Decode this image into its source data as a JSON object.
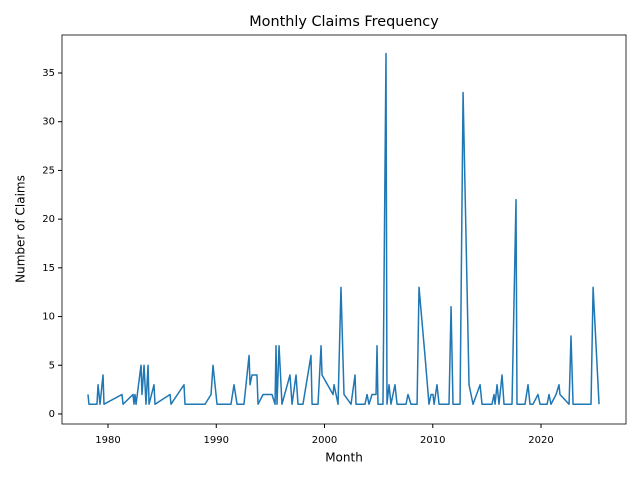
{
  "chart_data": {
    "type": "line",
    "title": "Monthly Claims Frequency",
    "x_label": "Month",
    "y_label": "Number of Claims",
    "color": "#1f77b4",
    "x": [
      1978.15,
      1978.24,
      1978.98,
      1979.08,
      1979.26,
      1979.54,
      1979.63,
      1981.29,
      1981.39,
      1982.31,
      1982.4,
      1982.49,
      1982.59,
      1983.05,
      1983.14,
      1983.33,
      1983.51,
      1983.7,
      1983.79,
      1984.25,
      1984.34,
      1985.73,
      1985.82,
      1987.02,
      1987.11,
      1988.96,
      1989.52,
      1989.7,
      1990.07,
      1991.36,
      1991.64,
      1991.92,
      1992.56,
      1993.03,
      1993.12,
      1993.3,
      1993.76,
      1993.86,
      1994.32,
      1995.15,
      1995.43,
      1995.52,
      1995.61,
      1995.8,
      1996.07,
      1996.81,
      1997.0,
      1997.37,
      1997.55,
      1998.01,
      1998.75,
      1998.85,
      1999.4,
      1999.68,
      1999.77,
      2000.79,
      2000.88,
      2001.25,
      2001.52,
      2001.8,
      2002.45,
      2002.82,
      2002.91,
      2003.74,
      2003.93,
      2004.11,
      2004.39,
      2004.76,
      2004.85,
      2004.94,
      2005.4,
      2005.68,
      2005.77,
      2005.96,
      2006.14,
      2006.51,
      2006.7,
      2007.53,
      2007.71,
      2007.99,
      2008.55,
      2008.73,
      2009.28,
      2009.65,
      2009.84,
      2010.02,
      2010.12,
      2010.39,
      2010.58,
      2011.5,
      2011.69,
      2011.87,
      2012.52,
      2012.8,
      2013.35,
      2013.72,
      2014.37,
      2014.55,
      2014.73,
      2015.47,
      2015.66,
      2015.75,
      2015.94,
      2016.12,
      2016.4,
      2016.58,
      2017.32,
      2017.69,
      2017.78,
      2018.52,
      2018.8,
      2018.98,
      2019.26,
      2019.72,
      2019.91,
      2020.56,
      2020.74,
      2020.92,
      2021.39,
      2021.66,
      2021.75,
      2022.59,
      2022.77,
      2022.96,
      2024.62,
      2024.81,
      2025.36
    ],
    "values": [
      2,
      1,
      1,
      3,
      1,
      4,
      1,
      2,
      1,
      2,
      1,
      2,
      1,
      5,
      2,
      5,
      1,
      5,
      1,
      3,
      1,
      2,
      1,
      3,
      1,
      1,
      2,
      5,
      1,
      1,
      3,
      1,
      1,
      6,
      3,
      4,
      4,
      1,
      2,
      2,
      1,
      7,
      1,
      7,
      1,
      4,
      1,
      4,
      1,
      1,
      6,
      1,
      1,
      7,
      4,
      2,
      3,
      1,
      13,
      2,
      1,
      4,
      1,
      1,
      2,
      1,
      2,
      2,
      7,
      1,
      1,
      37,
      1,
      3,
      1,
      3,
      1,
      1,
      2,
      1,
      1,
      13,
      6,
      1,
      2,
      2,
      1,
      3,
      1,
      1,
      11,
      1,
      1,
      33,
      3,
      1,
      3,
      1,
      1,
      1,
      2,
      1,
      3,
      1,
      4,
      1,
      1,
      22,
      1,
      1,
      3,
      1,
      1,
      2,
      1,
      1,
      2,
      1,
      2,
      3,
      2,
      1,
      8,
      1,
      1,
      13,
      1
    ],
    "xlim": [
      1975.75,
      2027.85
    ],
    "ylim": [
      -1.03,
      38.9
    ],
    "xticks": [
      1980,
      1990,
      2000,
      2010,
      2020
    ],
    "yticks": [
      0,
      5,
      10,
      15,
      20,
      25,
      30,
      35
    ]
  }
}
